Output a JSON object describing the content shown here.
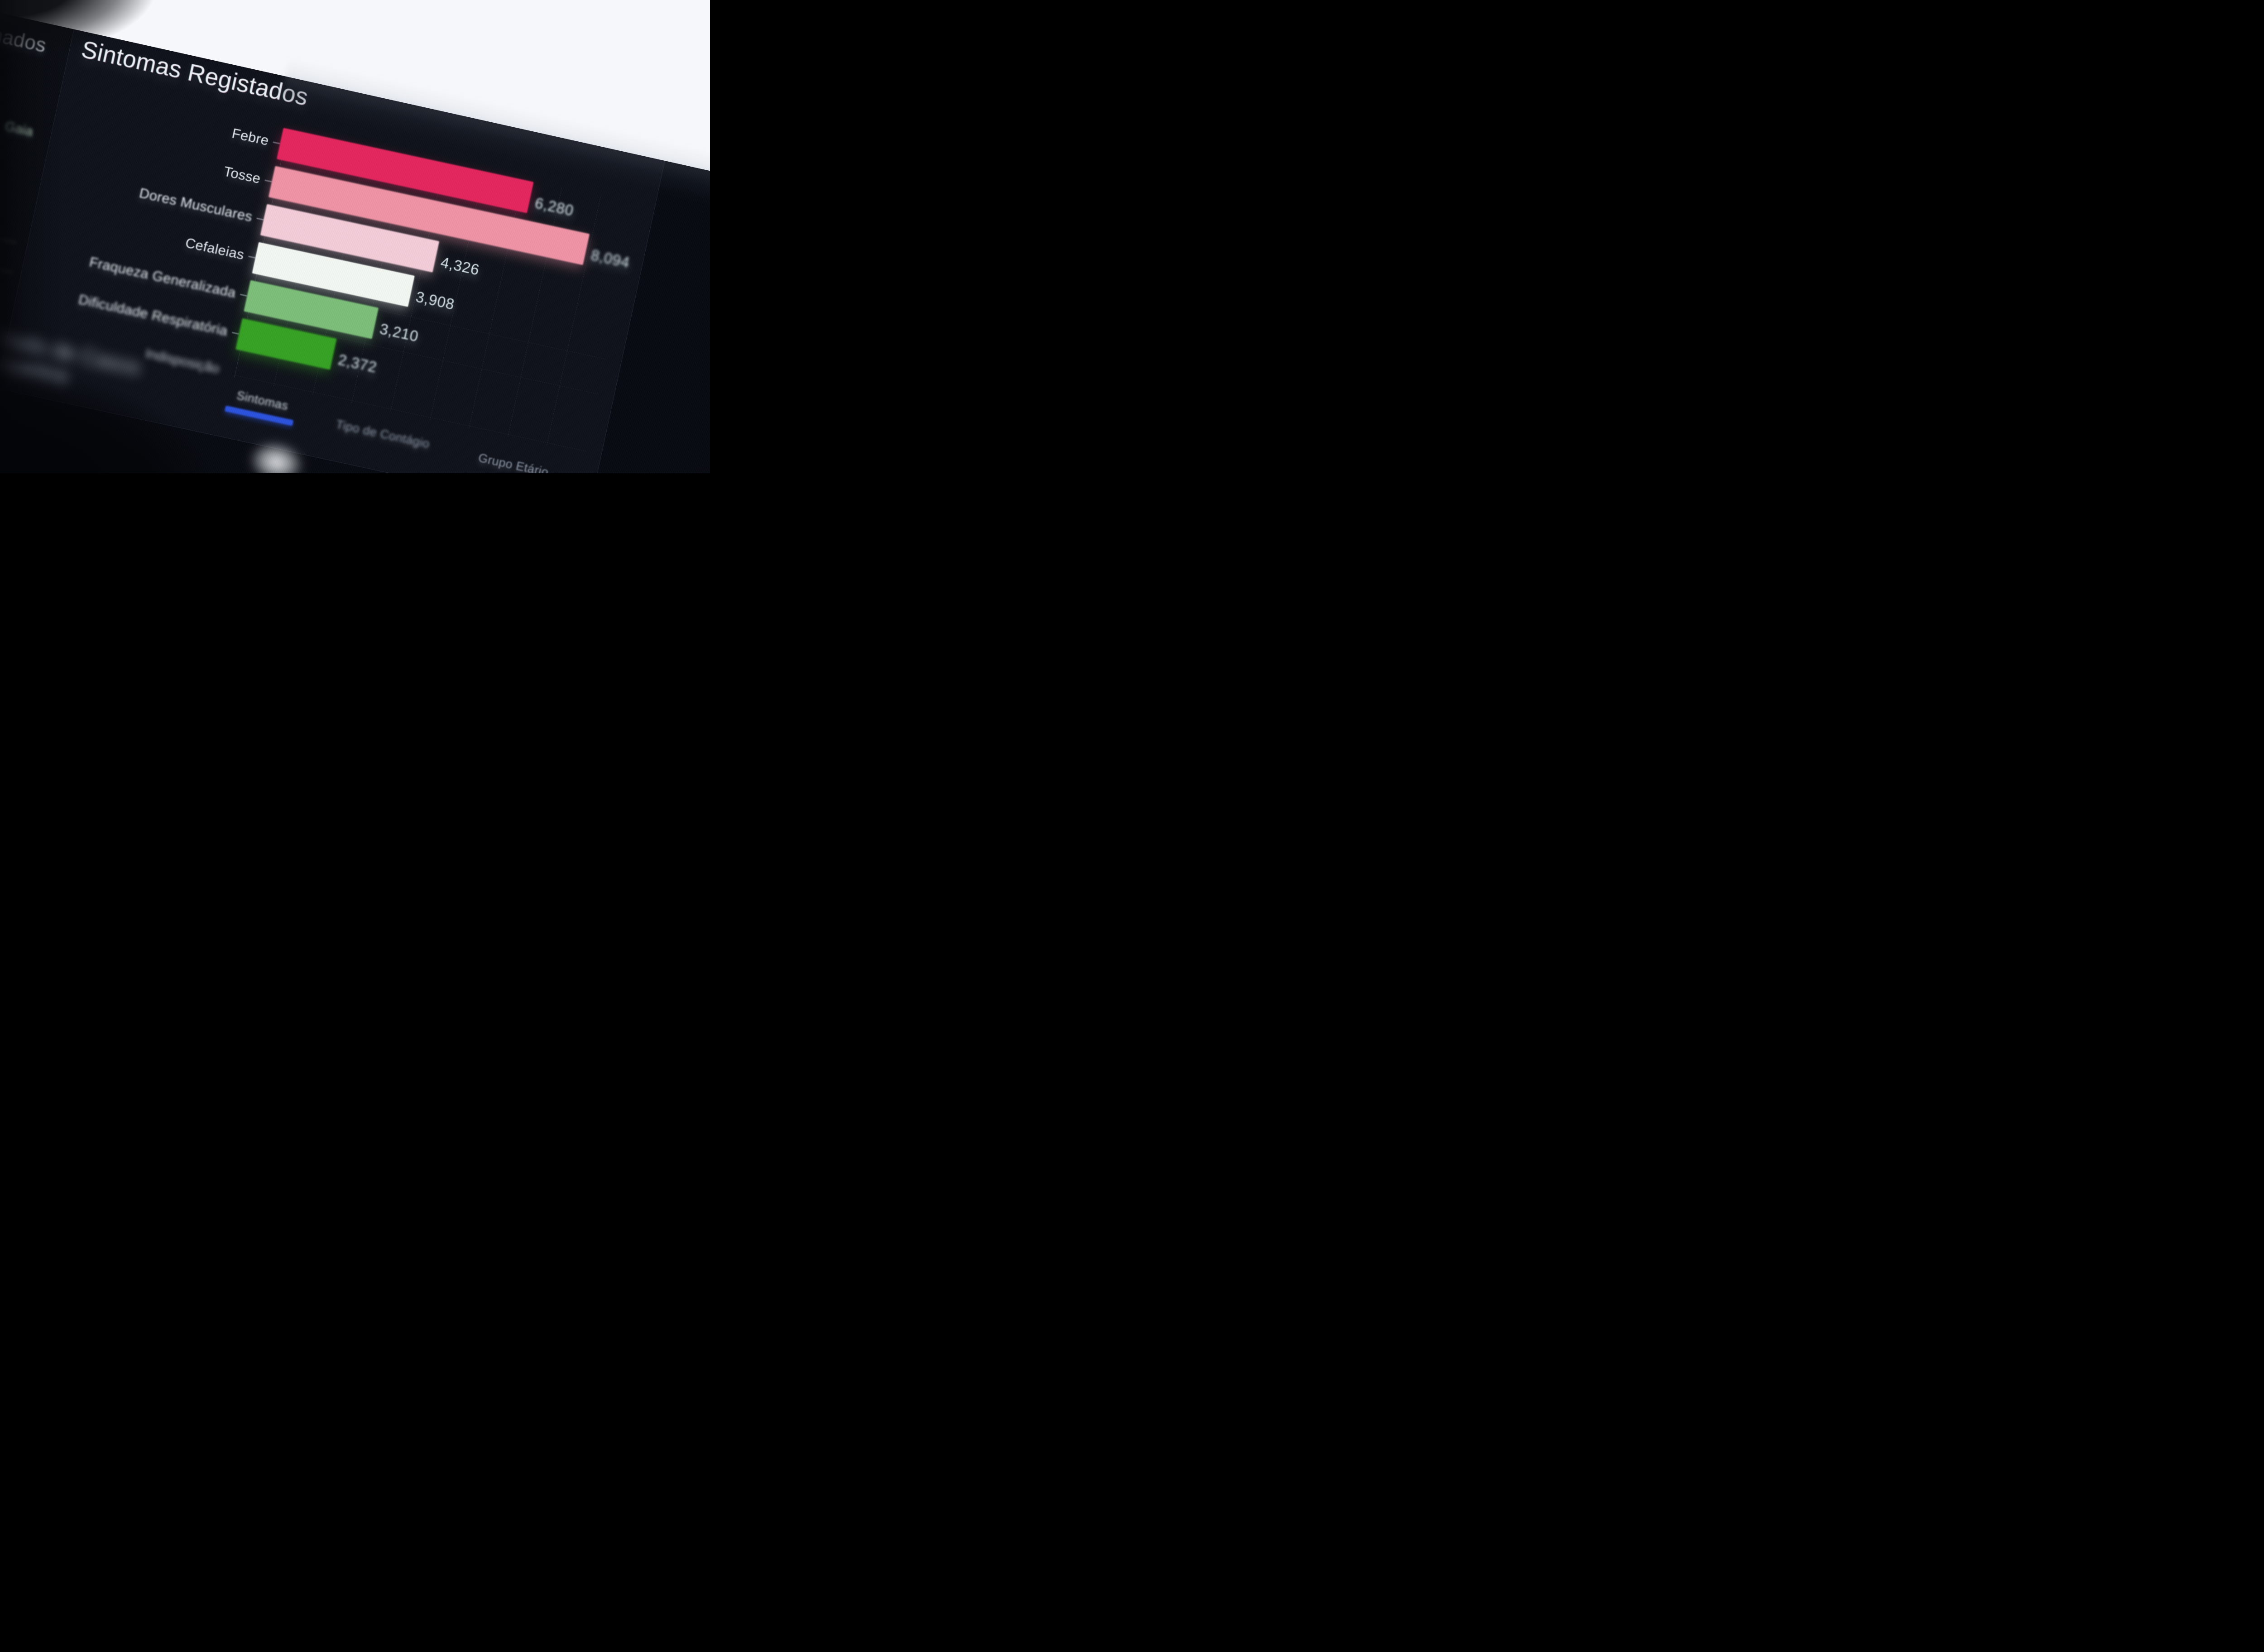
{
  "sidebar": {
    "header_fragment": "mados",
    "items": [
      {
        "text": "Gaia",
        "illegible": true
      },
      {
        "text": "·····",
        "illegible": true
      },
      {
        "text": "····",
        "illegible": true
      }
    ],
    "section_heading": {
      "text": "Estado de Casos Suspeitos",
      "illegible": true
    }
  },
  "panel": {
    "title": "Sintomas Registados",
    "tabs": [
      {
        "label": "Sintomas",
        "active": true
      },
      {
        "label": "Tipo de Contágio",
        "active": false
      },
      {
        "label": "Grupo Etário",
        "active": false
      }
    ],
    "active_tab_color": "#2b52dd"
  },
  "chart_data": {
    "type": "bar",
    "orientation": "horizontal",
    "title": "Sintomas Registados",
    "categories": [
      "Febre",
      "Tosse",
      "Dores Musculares",
      "Cefaleias",
      "Fraqueza Generalizada",
      "Dificuldade Respiratória"
    ],
    "values": [
      6280,
      8094,
      4326,
      3908,
      3210,
      2372
    ],
    "value_labels": [
      "6,280",
      "8,094",
      "4,326",
      "3,908",
      "3,210",
      "2,372"
    ],
    "bar_colors": [
      "#e4255e",
      "#ef93a6",
      "#f3ccd8",
      "#f2f7f2",
      "#7cbe79",
      "#36a224"
    ],
    "extra_illegible_category": {
      "text": "Indisposição",
      "illegible": true
    },
    "xlabel": "",
    "ylabel": "",
    "xlim": [
      0,
      9000
    ],
    "gridline_interval": 1000,
    "grid": true,
    "legend": false
  }
}
